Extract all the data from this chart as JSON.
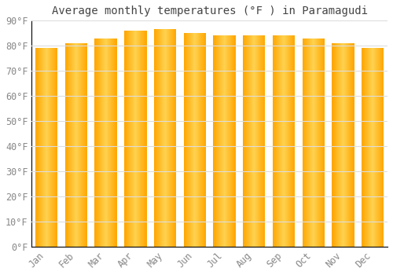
{
  "title": "Average monthly temperatures (°F ) in Paramagudi",
  "months": [
    "Jan",
    "Feb",
    "Mar",
    "Apr",
    "May",
    "Jun",
    "Jul",
    "Aug",
    "Sep",
    "Oct",
    "Nov",
    "Dec"
  ],
  "values": [
    79,
    81,
    83,
    86,
    86.5,
    85,
    84,
    84,
    84,
    83,
    81,
    79
  ],
  "ylim": [
    0,
    90
  ],
  "yticks": [
    0,
    10,
    20,
    30,
    40,
    50,
    60,
    70,
    80,
    90
  ],
  "bar_color_left": "#FFA500",
  "bar_color_center": "#FFD060",
  "bar_color_right": "#FFA500",
  "background_color": "#ffffff",
  "grid_color": "#dddddd",
  "title_fontsize": 10,
  "tick_fontsize": 8.5
}
